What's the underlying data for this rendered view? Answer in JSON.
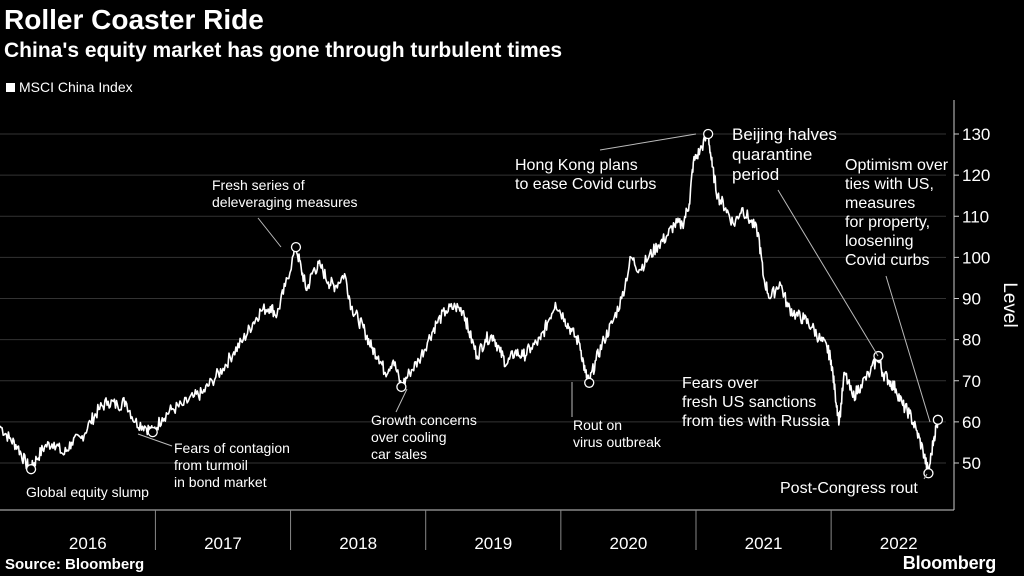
{
  "header": {
    "title": "Roller Coaster Ride",
    "subtitle": "China's equity market has gone through turbulent times"
  },
  "legend": {
    "label": "MSCI China Index"
  },
  "footer": {
    "source": "Source: Bloomberg",
    "brand": "Bloomberg"
  },
  "colors": {
    "background": "#000000",
    "line": "#ffffff",
    "grid": "#333333",
    "marker": "#ffffff"
  },
  "chart_data": {
    "type": "line",
    "title": "Roller Coaster Ride",
    "subtitle": "China's equity market has gone through turbulent times",
    "xlabel": "",
    "ylabel": "Level",
    "xlim": [
      2015.85,
      2022.85
    ],
    "ylim": [
      42,
      133
    ],
    "y_ticks": [
      50,
      60,
      70,
      80,
      90,
      100,
      110,
      120,
      130
    ],
    "grid": true,
    "legend_position": "top-left",
    "year_labels": [
      {
        "label": "2016",
        "center": 2016.5
      },
      {
        "label": "2017",
        "center": 2017.5
      },
      {
        "label": "2018",
        "center": 2018.5
      },
      {
        "label": "2019",
        "center": 2019.5
      },
      {
        "label": "2020",
        "center": 2020.5
      },
      {
        "label": "2021",
        "center": 2021.5
      },
      {
        "label": "2022",
        "center": 2022.5
      }
    ],
    "year_dividers": [
      2017,
      2018,
      2019,
      2020,
      2021,
      2022
    ],
    "series": [
      {
        "name": "MSCI China Index",
        "points": [
          [
            2015.85,
            59
          ],
          [
            2015.92,
            56
          ],
          [
            2015.98,
            54
          ],
          [
            2016.04,
            50
          ],
          [
            2016.08,
            48.5
          ],
          [
            2016.12,
            51
          ],
          [
            2016.18,
            54
          ],
          [
            2016.25,
            55
          ],
          [
            2016.32,
            52
          ],
          [
            2016.38,
            55
          ],
          [
            2016.45,
            56
          ],
          [
            2016.52,
            60
          ],
          [
            2016.58,
            63
          ],
          [
            2016.65,
            65
          ],
          [
            2016.72,
            64
          ],
          [
            2016.78,
            65
          ],
          [
            2016.85,
            60
          ],
          [
            2016.92,
            59
          ],
          [
            2016.98,
            57.5
          ],
          [
            2017.05,
            61
          ],
          [
            2017.12,
            63
          ],
          [
            2017.2,
            64
          ],
          [
            2017.28,
            66
          ],
          [
            2017.35,
            67
          ],
          [
            2017.42,
            70
          ],
          [
            2017.5,
            73
          ],
          [
            2017.58,
            77
          ],
          [
            2017.65,
            80
          ],
          [
            2017.72,
            84
          ],
          [
            2017.78,
            87
          ],
          [
            2017.85,
            88
          ],
          [
            2017.9,
            86
          ],
          [
            2017.96,
            93
          ],
          [
            2018.04,
            102.5
          ],
          [
            2018.08,
            97
          ],
          [
            2018.12,
            92
          ],
          [
            2018.17,
            97
          ],
          [
            2018.22,
            98
          ],
          [
            2018.28,
            94
          ],
          [
            2018.33,
            93
          ],
          [
            2018.4,
            96
          ],
          [
            2018.45,
            88
          ],
          [
            2018.5,
            85
          ],
          [
            2018.55,
            82
          ],
          [
            2018.6,
            78
          ],
          [
            2018.65,
            76
          ],
          [
            2018.7,
            72
          ],
          [
            2018.76,
            75
          ],
          [
            2018.82,
            68.5
          ],
          [
            2018.88,
            72
          ],
          [
            2018.95,
            75
          ],
          [
            2019.02,
            80
          ],
          [
            2019.08,
            84
          ],
          [
            2019.15,
            87
          ],
          [
            2019.22,
            88
          ],
          [
            2019.28,
            87
          ],
          [
            2019.32,
            82
          ],
          [
            2019.38,
            76
          ],
          [
            2019.44,
            80
          ],
          [
            2019.5,
            81
          ],
          [
            2019.55,
            77
          ],
          [
            2019.6,
            74
          ],
          [
            2019.66,
            77
          ],
          [
            2019.72,
            76
          ],
          [
            2019.78,
            78
          ],
          [
            2019.85,
            80
          ],
          [
            2019.9,
            84
          ],
          [
            2019.96,
            89
          ],
          [
            2020.03,
            85
          ],
          [
            2020.08,
            82
          ],
          [
            2020.14,
            79
          ],
          [
            2020.18,
            72
          ],
          [
            2020.21,
            69.5
          ],
          [
            2020.26,
            75
          ],
          [
            2020.32,
            80
          ],
          [
            2020.38,
            84
          ],
          [
            2020.45,
            90
          ],
          [
            2020.52,
            100
          ],
          [
            2020.58,
            97
          ],
          [
            2020.65,
            100
          ],
          [
            2020.72,
            103
          ],
          [
            2020.78,
            105
          ],
          [
            2020.84,
            108
          ],
          [
            2020.9,
            108
          ],
          [
            2020.95,
            113
          ],
          [
            2020.98,
            123
          ],
          [
            2021.03,
            126
          ],
          [
            2021.09,
            130
          ],
          [
            2021.12,
            122
          ],
          [
            2021.16,
            115
          ],
          [
            2021.22,
            112
          ],
          [
            2021.28,
            108
          ],
          [
            2021.34,
            112
          ],
          [
            2021.4,
            109
          ],
          [
            2021.46,
            106
          ],
          [
            2021.5,
            95
          ],
          [
            2021.55,
            90
          ],
          [
            2021.62,
            94
          ],
          [
            2021.68,
            88
          ],
          [
            2021.74,
            86
          ],
          [
            2021.8,
            85
          ],
          [
            2021.86,
            83
          ],
          [
            2021.92,
            80
          ],
          [
            2021.97,
            78
          ],
          [
            2022.0,
            75
          ],
          [
            2022.03,
            67
          ],
          [
            2022.06,
            60
          ],
          [
            2022.1,
            72
          ],
          [
            2022.16,
            66
          ],
          [
            2022.22,
            69
          ],
          [
            2022.29,
            72
          ],
          [
            2022.35,
            76
          ],
          [
            2022.38,
            72
          ],
          [
            2022.43,
            70
          ],
          [
            2022.48,
            68
          ],
          [
            2022.53,
            64
          ],
          [
            2022.58,
            62
          ],
          [
            2022.63,
            58
          ],
          [
            2022.68,
            53
          ],
          [
            2022.72,
            47.5
          ],
          [
            2022.76,
            56
          ],
          [
            2022.79,
            60.5
          ]
        ]
      }
    ],
    "annotations": [
      {
        "text": [
          "Global equity slump"
        ],
        "x": 2016.08,
        "y": 48.5,
        "side": "below-right"
      },
      {
        "text": [
          "Fears of contagion",
          "from turmoil",
          "in bond market"
        ],
        "x": 2016.98,
        "y": 57.5,
        "side": "below-right"
      },
      {
        "text": [
          "Fresh series of",
          "deleveraging measures"
        ],
        "x": 2018.04,
        "y": 102.5,
        "side": "above-left"
      },
      {
        "text": [
          "Growth concerns",
          "over cooling",
          "car sales"
        ],
        "x": 2018.82,
        "y": 68.5,
        "side": "below-left"
      },
      {
        "text": [
          "Rout on",
          "virus outbreak"
        ],
        "x": 2020.21,
        "y": 69.5,
        "side": "below"
      },
      {
        "text": [
          "Hong Kong plans",
          "to ease Covid curbs"
        ],
        "x": 2021.09,
        "y": 130,
        "side": "left"
      },
      {
        "text": [
          "Beijing halves",
          "quarantine",
          "period"
        ],
        "x": 2022.35,
        "y": 76,
        "side": "upper-left"
      },
      {
        "text": [
          "Fears over",
          "fresh US sanctions",
          "from ties with Russia"
        ],
        "x": 2022.06,
        "y": 60,
        "side": "label-only"
      },
      {
        "text": [
          "Optimism over",
          "ties with US,",
          "measures",
          "for property,",
          "loosening",
          "Covid curbs"
        ],
        "x": 2022.79,
        "y": 60.5,
        "side": "upper-left"
      },
      {
        "text": [
          "Post-Congress rout"
        ],
        "x": 2022.72,
        "y": 47.5,
        "side": "below-left"
      }
    ]
  }
}
